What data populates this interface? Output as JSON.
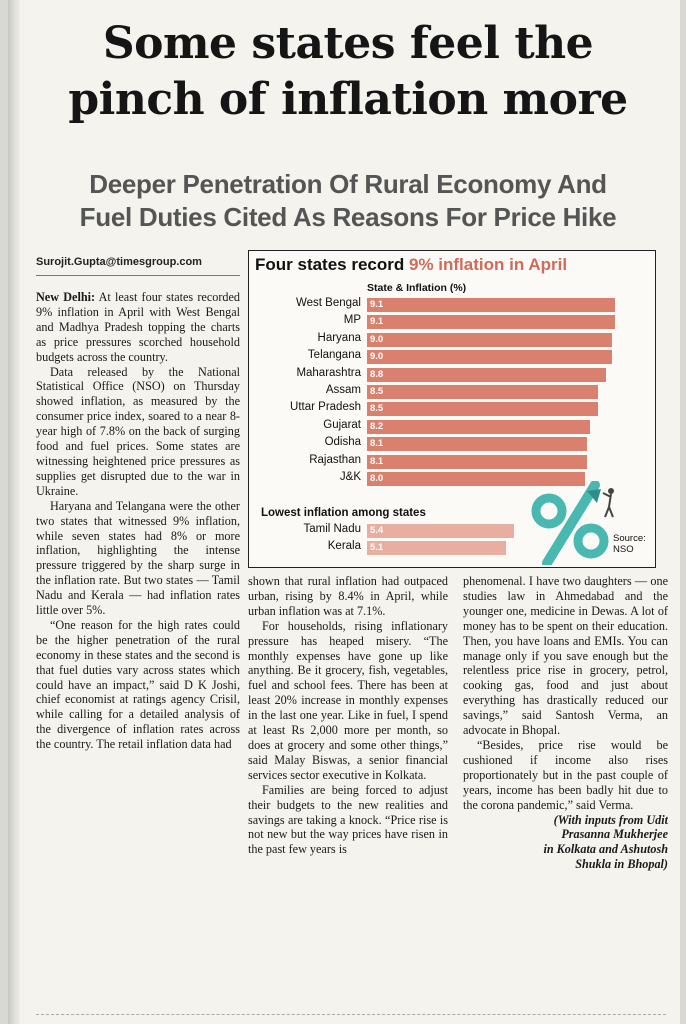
{
  "headline": {
    "line1": "Some states feel the",
    "line2": "pinch of inflation more"
  },
  "subhead": {
    "line1": "Deeper Penetration Of Rural Economy And",
    "line2": "Fuel Duties Cited As Reasons For Price Hike"
  },
  "byline": "Surojit.Gupta@timesgroup.com",
  "chart": {
    "title_part1": "Four states record",
    "title_highlight": "9% inflation in April",
    "subtitle": "State & Inflation (%)",
    "lowest_label": "Lowest inflation among states",
    "source_line1": "Source:",
    "source_line2": "NSO",
    "bar_color": "#d9806e",
    "bar_color_low": "#e7aea1",
    "icon": "percent-graphic-icon"
  },
  "chart_data": {
    "type": "bar",
    "orientation": "horizontal",
    "title": "Four states record 9% inflation in April",
    "ylabel": "State & Inflation (%)",
    "xlim": [
      0,
      10
    ],
    "categories": [
      "West Bengal",
      "MP",
      "Haryana",
      "Telangana",
      "Maharashtra",
      "Assam",
      "Uttar Pradesh",
      "Gujarat",
      "Odisha",
      "Rajasthan",
      "J&K"
    ],
    "values": [
      9.1,
      9.1,
      9.0,
      9.0,
      8.8,
      8.5,
      8.5,
      8.2,
      8.1,
      8.1,
      8.0
    ],
    "value_labels": [
      "9.1",
      "9.1",
      "9.0",
      "9.0",
      "8.8",
      "8.5",
      "8.5",
      "8.2",
      "8.1",
      "8.1",
      "8.0"
    ],
    "lowest_label": "Lowest inflation among states",
    "lowest_categories": [
      "Tamil Nadu",
      "Kerala"
    ],
    "lowest_values": [
      5.4,
      5.1
    ],
    "lowest_value_labels": [
      "5.4",
      "5.1"
    ],
    "source": "Source: NSO"
  },
  "article": {
    "col1": [
      {
        "lead": "New Delhi:",
        "text": " At least four states recorded 9% inflation in April with West Bengal and Madhya Pradesh topping the charts as price pressures scorched household budgets across the country."
      },
      {
        "text": "Data released by the National Statistical Office (NSO) on Thursday showed inflation, as measured by the consumer price index, soared to a near 8-year high of 7.8% on the back of surging food and fuel prices. Some states are witnessing heightened price pressures as supplies get disrupted due to the war in Ukraine."
      },
      {
        "text": "Haryana and Telangana were the other two states that witnessed 9% inflation, while seven states had 8% or more inflation, highlighting the intense pressure triggered by the sharp surge in the inflation rate. But two states — Tamil Nadu and Kerala — had inflation rates little over 5%."
      },
      {
        "text": "“One reason for the high rates could be the higher penetration of the rural economy in these states and the second is that fuel duties vary across states which could have an impact,” said D K Joshi, chief economist at ratings agency Crisil, while calling for a detailed analysis of the divergence of inflation rates across the country. The retail inflation data had"
      }
    ],
    "col2": [
      {
        "text": "shown that rural inflation had outpaced urban, rising by 8.4% in April, while urban inflation was at 7.1%."
      },
      {
        "text": "For households, rising inflationary pressure has heaped misery. “The monthly expenses have gone up like anything. Be it grocery, fish, vegetables, fuel and school fees. There has been at least 20% increase in monthly expenses in the last one year. Like in fuel, I spend at least Rs 2,000 more per month, so does at grocery and some other things,” said Malay Biswas, a senior financial services sector executive in Kolkata."
      },
      {
        "text": "Families are being forced to adjust their budgets to the new realities and savings are taking a knock. “Price rise is not new but the way prices have risen in the past few years is"
      }
    ],
    "col3": [
      {
        "text": "phenomenal. I have two daughters — one studies law in Ahmedabad and the younger one, medicine in Dewas. A lot of money has to be spent on their education. Then, you have loans and EMIs. You can manage only if you save enough but the relentless price rise in grocery, petrol, cooking gas, food and just about everything has drastically reduced our savings,” said Santosh Verma, an advocate in Bhopal."
      },
      {
        "text": "“Besides, price rise would be cushioned if income also rises proportionately but in the past couple of years, income has been badly hit due to the corona pandemic,” said Verma."
      }
    ],
    "credit_line1": "(With inputs from Udit",
    "credit_line2": "Prasanna Mukherjee",
    "credit_line3": "in Kolkata and Ashutosh",
    "credit_line4": "Shukla in Bhopal)"
  }
}
